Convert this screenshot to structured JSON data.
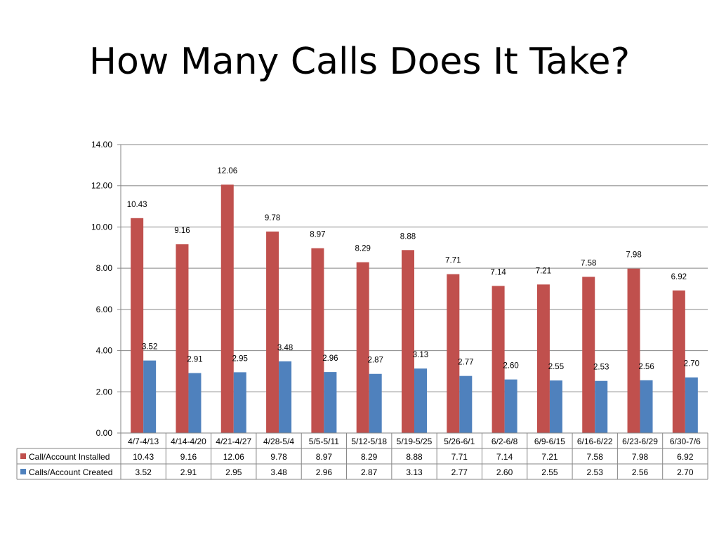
{
  "slide": {
    "title": "How Many Calls Does It Take?"
  },
  "chart_data": {
    "type": "bar",
    "categories": [
      "4/7-4/13",
      "4/14-4/20",
      "4/21-4/27",
      "4/28-5/4",
      "5/5-5/11",
      "5/12-5/18",
      "5/19-5/25",
      "5/26-6/1",
      "6/2-6/8",
      "6/9-6/15",
      "6/16-6/22",
      "6/23-6/29",
      "6/30-7/6"
    ],
    "series": [
      {
        "name": "Call/Account Installed",
        "color": "#C0504D",
        "values": [
          10.43,
          9.16,
          12.06,
          9.78,
          8.97,
          8.29,
          8.88,
          7.71,
          7.14,
          7.21,
          7.58,
          7.98,
          6.92
        ],
        "labels": [
          "10.43",
          "9.16",
          "12.06",
          "9.78",
          "8.97",
          "8.29",
          "8.88",
          "7.71",
          "7.14",
          "7.21",
          "7.58",
          "7.98",
          "6.92"
        ]
      },
      {
        "name": "Calls/Account Created",
        "color": "#4F81BD",
        "values": [
          3.52,
          2.91,
          2.95,
          3.48,
          2.96,
          2.87,
          3.13,
          2.77,
          2.6,
          2.55,
          2.53,
          2.56,
          2.7
        ],
        "labels": [
          "3.52",
          "2.91",
          "2.95",
          "3.48",
          "2.96",
          "2.87",
          "3.13",
          "2.77",
          "2.60",
          "2.55",
          "2.53",
          "2.56",
          "2.70"
        ]
      }
    ],
    "y_ticks": [
      "0.00",
      "2.00",
      "4.00",
      "6.00",
      "8.00",
      "10.00",
      "12.00",
      "14.00"
    ],
    "ylim": [
      0,
      14
    ],
    "grid": true,
    "legend": "data table",
    "xlabel": "",
    "ylabel": ""
  }
}
